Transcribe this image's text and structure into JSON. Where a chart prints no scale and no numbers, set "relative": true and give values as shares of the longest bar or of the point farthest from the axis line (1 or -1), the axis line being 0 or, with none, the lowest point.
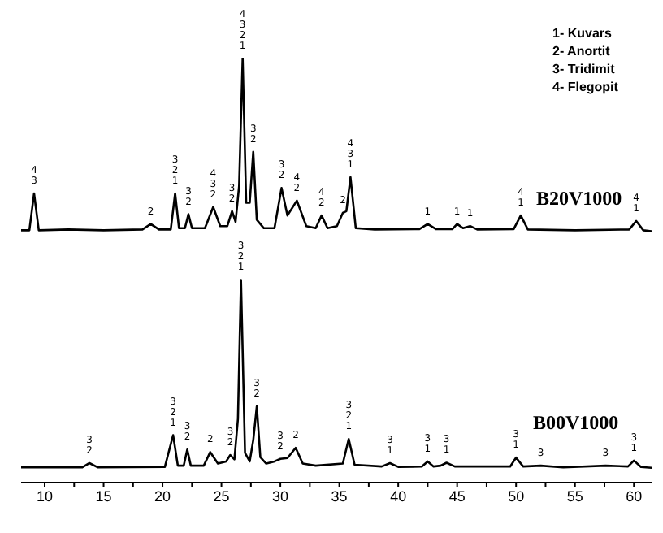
{
  "chart_data": {
    "type": "line",
    "relative": true,
    "grid": false,
    "marker": "none",
    "line_style": "solid",
    "xlim": [
      8,
      61.5
    ],
    "xticks": [
      10,
      {
        "value": 12.5,
        "label": null
      },
      15,
      {
        "value": 17.5,
        "label": null
      },
      20,
      {
        "value": 22.5,
        "label": null
      },
      25,
      {
        "value": 27.5,
        "label": null
      },
      30,
      {
        "value": 32.5,
        "label": null
      },
      35,
      {
        "value": 37.5,
        "label": null
      },
      40,
      {
        "value": 42.5,
        "label": null
      },
      45,
      {
        "value": 47.5,
        "label": null
      },
      50,
      {
        "value": 52.5,
        "label": null
      },
      55,
      {
        "value": 57.5,
        "label": null
      },
      60
    ],
    "series": [
      {
        "name": "B20V1000",
        "color": "#000000",
        "x": [
          8,
          8.7,
          9.1,
          9.5,
          12,
          15,
          18.3,
          19.0,
          19.7,
          20.7,
          21.07,
          21.4,
          21.9,
          22.2,
          22.5,
          23.6,
          24.3,
          24.9,
          25.5,
          25.9,
          26.2,
          26.5,
          26.8,
          27.1,
          27.4,
          27.7,
          28.0,
          28.6,
          29.5,
          30.1,
          30.6,
          31.4,
          32.2,
          33.0,
          33.5,
          34.0,
          34.8,
          35.3,
          35.6,
          35.95,
          36.4,
          38,
          41.8,
          42.5,
          43.2,
          44.6,
          45.0,
          45.5,
          46.1,
          46.7,
          49.8,
          50.4,
          51.0,
          55,
          59.6,
          60.2,
          60.8,
          61.5
        ],
        "values": [
          0.595,
          0.595,
          0.682,
          0.595,
          0.597,
          0.595,
          0.597,
          0.61,
          0.597,
          0.597,
          0.682,
          0.6,
          0.6,
          0.633,
          0.6,
          0.6,
          0.65,
          0.605,
          0.605,
          0.64,
          0.615,
          0.7,
          1.0,
          0.66,
          0.66,
          0.78,
          0.62,
          0.6,
          0.6,
          0.695,
          0.63,
          0.665,
          0.605,
          0.6,
          0.63,
          0.6,
          0.605,
          0.636,
          0.64,
          0.72,
          0.6,
          0.597,
          0.598,
          0.61,
          0.598,
          0.598,
          0.61,
          0.6,
          0.605,
          0.597,
          0.598,
          0.63,
          0.597,
          0.595,
          0.597,
          0.617,
          0.595,
          0.593
        ]
      },
      {
        "name": "B00V1000",
        "color": "#000000",
        "x": [
          8,
          13.2,
          13.8,
          14.5,
          20.2,
          20.9,
          21.3,
          21.8,
          22.1,
          22.4,
          23.5,
          24.05,
          24.7,
          25.4,
          25.75,
          26.1,
          26.4,
          26.66,
          27.0,
          27.4,
          27.7,
          28.0,
          28.3,
          28.8,
          29.5,
          30.0,
          30.6,
          31.3,
          31.9,
          33,
          35.3,
          35.8,
          36.3,
          38.6,
          39.3,
          40,
          42,
          42.5,
          43,
          43.6,
          44.1,
          44.8,
          49.5,
          50.0,
          50.6,
          52.1,
          54,
          57.6,
          59.5,
          60.0,
          60.6,
          61.5
        ],
        "values": [
          0.036,
          0.036,
          0.046,
          0.036,
          0.037,
          0.112,
          0.04,
          0.04,
          0.078,
          0.04,
          0.04,
          0.072,
          0.045,
          0.05,
          0.065,
          0.055,
          0.15,
          0.478,
          0.07,
          0.05,
          0.1,
          0.18,
          0.06,
          0.045,
          0.05,
          0.056,
          0.058,
          0.082,
          0.045,
          0.04,
          0.045,
          0.103,
          0.042,
          0.038,
          0.046,
          0.037,
          0.038,
          0.05,
          0.038,
          0.04,
          0.047,
          0.038,
          0.038,
          0.059,
          0.038,
          0.04,
          0.036,
          0.04,
          0.038,
          0.052,
          0.037,
          0.035
        ]
      }
    ],
    "annotations": [
      "1- Kuvars",
      "2- Anortit",
      "3- Tridimit",
      "4- Flegopit",
      {
        "text": "4\n3",
        "x": 9.1,
        "y": 0.682
      },
      {
        "text": "2",
        "x": 19.0,
        "y": 0.61
      },
      {
        "text": "3\n2\n1",
        "x": 21.07,
        "y": 0.682
      },
      {
        "text": "3\n2",
        "x": 22.2,
        "y": 0.633
      },
      {
        "text": "4\n3\n2",
        "x": 24.3,
        "y": 0.65
      },
      {
        "text": "3\n2",
        "x": 25.9,
        "y": 0.64
      },
      {
        "text": "4\n3\n2\n1",
        "x": 26.8,
        "y": 1.0
      },
      {
        "text": "3\n2",
        "x": 27.7,
        "y": 0.78
      },
      {
        "text": "3\n2",
        "x": 30.1,
        "y": 0.695
      },
      {
        "text": "4\n2",
        "x": 31.4,
        "y": 0.665
      },
      {
        "text": "4\n2",
        "x": 33.5,
        "y": 0.63
      },
      {
        "text": "2",
        "x": 35.3,
        "y": 0.636
      },
      {
        "text": "4\n3\n1",
        "x": 35.95,
        "y": 0.72
      },
      {
        "text": "1",
        "x": 42.5,
        "y": 0.61
      },
      {
        "text": "1",
        "x": 45.0,
        "y": 0.61
      },
      {
        "text": "1",
        "x": 46.1,
        "y": 0.605
      },
      {
        "text": "4\n1",
        "x": 50.4,
        "y": 0.63
      },
      {
        "text": "4\n1",
        "x": 60.2,
        "y": 0.617
      },
      {
        "text": "3\n2",
        "x": 13.8,
        "y": 0.046
      },
      {
        "text": "3\n2\n1",
        "x": 20.9,
        "y": 0.112
      },
      {
        "text": "3\n2",
        "x": 22.1,
        "y": 0.078
      },
      {
        "text": "2",
        "x": 24.05,
        "y": 0.072
      },
      {
        "text": "3\n2",
        "x": 25.75,
        "y": 0.065
      },
      {
        "text": "3\n2\n1",
        "x": 26.66,
        "y": 0.478
      },
      {
        "text": "3\n2",
        "x": 28.0,
        "y": 0.18
      },
      {
        "text": "3\n2",
        "x": 30.0,
        "y": 0.056
      },
      {
        "text": "2",
        "x": 31.3,
        "y": 0.082
      },
      {
        "text": "3\n2\n1",
        "x": 35.8,
        "y": 0.103
      },
      {
        "text": "3\n1",
        "x": 39.3,
        "y": 0.046
      },
      {
        "text": "3\n1",
        "x": 42.5,
        "y": 0.05
      },
      {
        "text": "3\n1",
        "x": 44.1,
        "y": 0.047
      },
      {
        "text": "3\n1",
        "x": 50.0,
        "y": 0.059
      },
      {
        "text": "3",
        "x": 52.1,
        "y": 0.04
      },
      {
        "text": "3",
        "x": 57.6,
        "y": 0.04
      },
      {
        "text": "3\n1",
        "x": 60.0,
        "y": 0.052
      }
    ]
  }
}
